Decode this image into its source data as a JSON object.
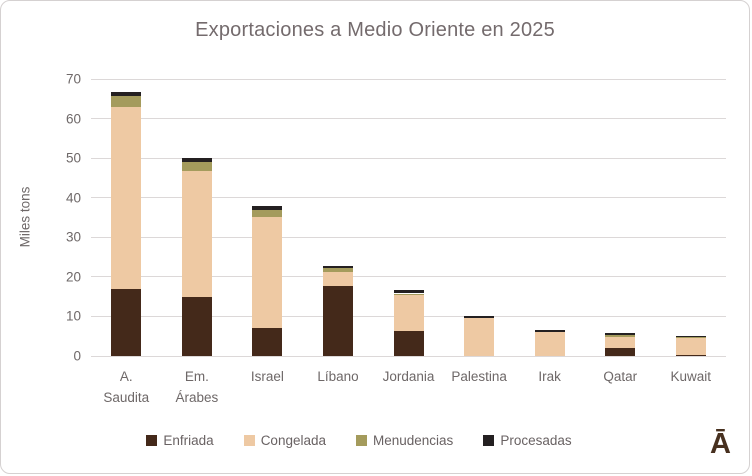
{
  "title": "Exportaciones a Medio Oriente en 2025",
  "y_axis": {
    "label": "Miles tons"
  },
  "logo_glyph": "Ā",
  "colors": {
    "title_text": "#746b6d",
    "axis_text": "#6e6868",
    "gridline": "#dcd8d8",
    "frame_border": "#d5d1d1",
    "logo": "#47301f"
  },
  "chart_data": {
    "type": "bar",
    "stacked": true,
    "title": "Exportaciones a Medio Oriente en 2025",
    "xlabel": "",
    "ylabel": "Miles tons",
    "ylim": [
      0,
      70
    ],
    "yticks": [
      0,
      10,
      20,
      30,
      40,
      50,
      60,
      70
    ],
    "grid": true,
    "legend_position": "bottom",
    "categories": [
      "A. Saudita",
      "Em. Árabes",
      "Israel",
      "Líbano",
      "Jordania",
      "Palestina",
      "Irak",
      "Qatar",
      "Kuwait"
    ],
    "category_lines": [
      [
        "A.",
        "Saudita"
      ],
      [
        "Em.",
        "Árabes"
      ],
      [
        "Israel"
      ],
      [
        "Líbano"
      ],
      [
        "Jordania"
      ],
      [
        "Palestina"
      ],
      [
        "Irak"
      ],
      [
        "Qatar"
      ],
      [
        "Kuwait"
      ]
    ],
    "series": [
      {
        "name": "Enfriada",
        "color": "#44291a",
        "values": [
          17.0,
          14.8,
          7.2,
          17.7,
          6.4,
          0,
          0,
          2.0,
          0.3
        ]
      },
      {
        "name": "Congelada",
        "color": "#eec9a3",
        "values": [
          46.0,
          32.0,
          28.0,
          3.6,
          8.9,
          9.7,
          6.1,
          2.8,
          4.2
        ]
      },
      {
        "name": "Menudencias",
        "color": "#a49b5c",
        "values": [
          2.8,
          2.3,
          1.7,
          1.0,
          0.5,
          0,
          0,
          0.5,
          0.3
        ]
      },
      {
        "name": "Procesadas",
        "color": "#242021",
        "values": [
          0.8,
          1.0,
          1.0,
          0.5,
          0.8,
          0.4,
          0.6,
          0.4,
          0.3
        ]
      }
    ],
    "totals": [
      66.6,
      50.1,
      37.9,
      22.8,
      16.6,
      10.1,
      6.7,
      5.7,
      5.1
    ]
  }
}
